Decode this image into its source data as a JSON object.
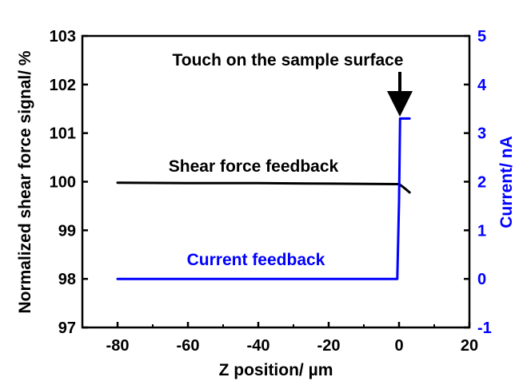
{
  "chart_data": {
    "type": "line",
    "xlabel": "Z position/ µm",
    "ylabel": "Normalized shear force signal/ %",
    "y2label": "Current/ nA",
    "xlim": [
      -90,
      20
    ],
    "ylim": [
      97,
      103
    ],
    "y2lim": [
      -1,
      5
    ],
    "xticks": [
      "-80",
      "-60",
      "-40",
      "-20",
      "0",
      "20"
    ],
    "yticks": [
      "97",
      "98",
      "99",
      "100",
      "101",
      "102",
      "103"
    ],
    "y2ticks": [
      "-1",
      "0",
      "1",
      "2",
      "3",
      "4",
      "5"
    ],
    "grid": false,
    "series": [
      {
        "name": "Shear force feedback",
        "axis": "left",
        "color": "#000000",
        "x": [
          -80,
          -60,
          -40,
          -20,
          -1,
          0,
          1,
          2,
          3
        ],
        "y": [
          99.98,
          99.97,
          99.97,
          99.96,
          99.95,
          99.95,
          99.9,
          99.84,
          99.78
        ]
      },
      {
        "name": "Current feedback",
        "axis": "right",
        "color": "#0000ff",
        "x": [
          -80,
          -60,
          -40,
          -20,
          -0.5,
          0,
          0.3,
          0.6,
          1.5,
          2.5,
          3
        ],
        "y": [
          0,
          0,
          0,
          0,
          0,
          1.6,
          3.3,
          3.3,
          3.3,
          3.3,
          3.3
        ]
      }
    ],
    "annotations": [
      {
        "text": "Touch on the sample surface",
        "arrow_x": 0,
        "arrow_y_right": 3.55,
        "color": "#000000"
      },
      {
        "text": "Shear force feedback",
        "color": "#000000"
      },
      {
        "text": "Current feedback",
        "color": "#0000ff"
      }
    ]
  }
}
